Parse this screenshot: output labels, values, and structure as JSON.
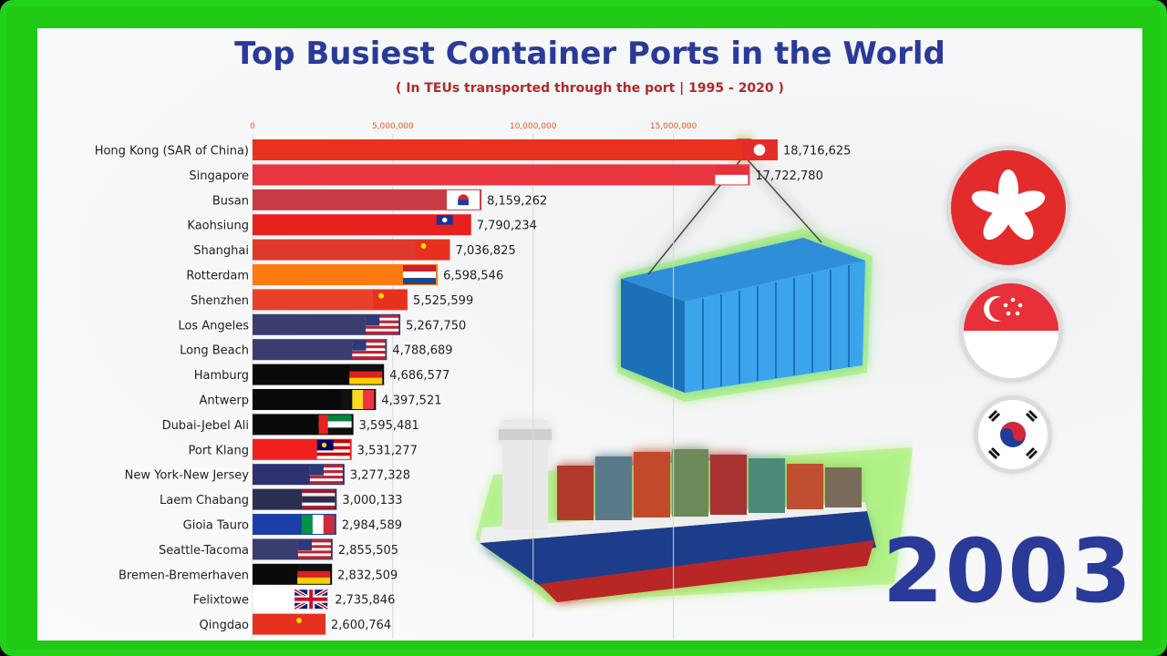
{
  "title": "Top Busiest Container Ports in the World",
  "subtitle": "( In TEUs transported through the port | 1995 - 2020 )",
  "year": "2003",
  "chart_data": {
    "type": "bar",
    "orientation": "horizontal",
    "title": "Top Busiest Container Ports in the World",
    "subtitle": "( In TEUs transported through the port | 1995 - 2020 )",
    "xlim": [
      0,
      18716625
    ],
    "ticks": [
      {
        "value": 0,
        "label": "0"
      },
      {
        "value": 5000000,
        "label": "5,000,000"
      },
      {
        "value": 10000000,
        "label": "10,000,000"
      },
      {
        "value": 15000000,
        "label": "15,000,000"
      }
    ],
    "categories": [
      "Hong Kong (SAR of China)",
      "Singapore",
      "Busan",
      "Kaohsiung",
      "Shanghai",
      "Rotterdam",
      "Shenzhen",
      "Los Angeles",
      "Long Beach",
      "Hamburg",
      "Antwerp",
      "Dubai-Jebel Ali",
      "Port Klang",
      "New York-New Jersey",
      "Laem Chabang",
      "Gioia Tauro",
      "Seattle-Tacoma",
      "Bremen-Bremerhaven",
      "Felixtowe",
      "Qingdao"
    ],
    "values": [
      18716625,
      17722780,
      8159262,
      7790234,
      7036825,
      6598546,
      5525599,
      5267750,
      4788689,
      4686577,
      4397521,
      3595481,
      3531277,
      3277328,
      3000133,
      2984589,
      2855505,
      2832509,
      2735846,
      2600764
    ],
    "value_labels": [
      "18,716,625",
      "17,722,780",
      "8,159,262",
      "7,790,234",
      "7,036,825",
      "6,598,546",
      "5,525,599",
      "5,267,750",
      "4,788,689",
      "4,686,577",
      "4,397,521",
      "3,595,481",
      "3,531,277",
      "3,277,328",
      "3,000,133",
      "2,984,589",
      "2,855,505",
      "2,832,509",
      "2,735,846",
      "2,600,764"
    ],
    "bar_colors": [
      "#e8311f",
      "#e8353f",
      "#c73b45",
      "#e8211f",
      "#e0382a",
      "#ff7a10",
      "#e8402a",
      "#3a3d6e",
      "#3a3d6e",
      "#0a0a0a",
      "#0a0a0a",
      "#0a0a0a",
      "#f02020",
      "#2e3170",
      "#2b2f52",
      "#1b3fa8",
      "#3a3d6e",
      "#0a0a0a",
      "#ffffff",
      "#e8301f"
    ],
    "flags": [
      "hk",
      "sg",
      "kr",
      "tw",
      "cn",
      "nl",
      "cn",
      "us",
      "us",
      "de",
      "be",
      "ae",
      "my",
      "us",
      "th",
      "it",
      "us",
      "de",
      "gb",
      "cn"
    ]
  },
  "side_flags": [
    "hk",
    "sg",
    "kr"
  ]
}
